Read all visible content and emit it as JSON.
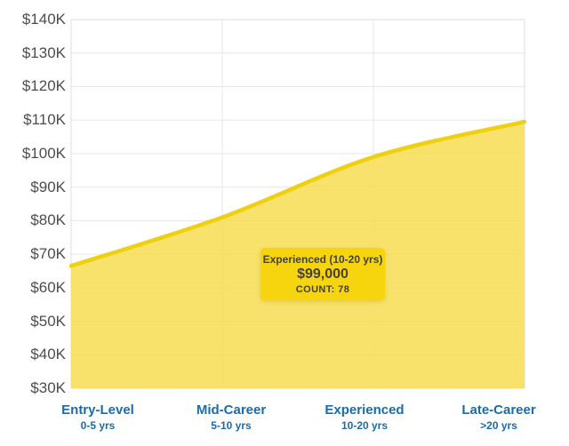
{
  "chart_data": {
    "type": "area",
    "categories": [
      {
        "label": "Entry-Level",
        "sublabel": "0-5 yrs"
      },
      {
        "label": "Mid-Career",
        "sublabel": "5-10 yrs"
      },
      {
        "label": "Experienced",
        "sublabel": "10-20 yrs"
      },
      {
        "label": "Late-Career",
        "sublabel": ">20 yrs"
      }
    ],
    "values": [
      66500,
      81000,
      99000,
      109500
    ],
    "xlabel": "",
    "ylabel": "",
    "ylim": [
      30000,
      140000
    ],
    "y_tick_labels": [
      "$140K",
      "$130K",
      "$120K",
      "$110K",
      "$100K",
      "$90K",
      "$80K",
      "$70K",
      "$60K",
      "$50K",
      "$40K",
      "$30K"
    ],
    "grid": true,
    "legend_position": "none",
    "tooltip": {
      "title": "Experienced (10-20 yrs)",
      "value": "$99,000",
      "count": "COUNT: 78"
    },
    "colors": {
      "area_fill": "#F7DC4B",
      "area_fill_opacity": "0.82",
      "line": "#EFD011",
      "grid": "#E7E7E7",
      "plot_border": "#DEDEDE",
      "axis_text": "#4D4D4D",
      "category_text": "#1B6CA8",
      "tooltip_bg": "#F6D40E",
      "tooltip_text": "#45422E"
    }
  }
}
